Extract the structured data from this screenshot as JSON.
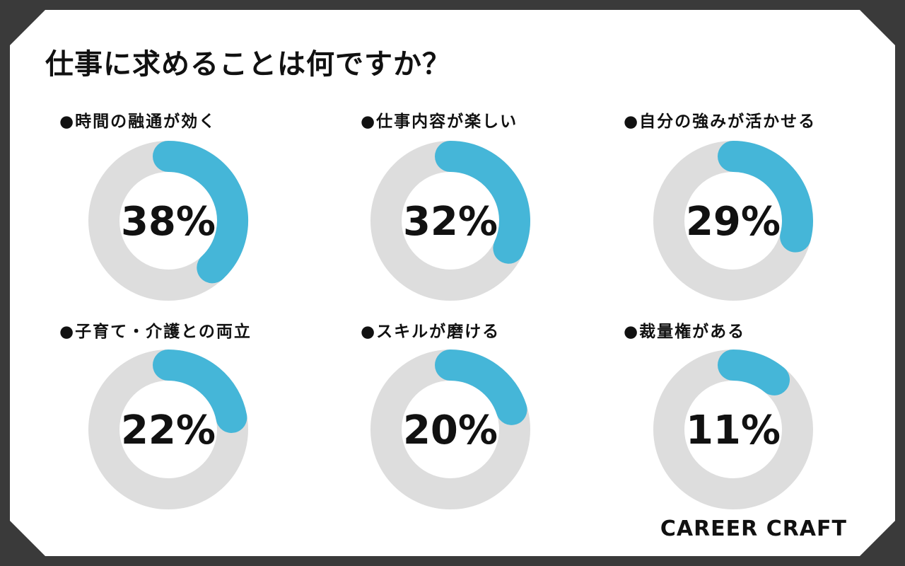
{
  "title": "仕事に求めることは何ですか？",
  "brand": "CAREER CRAFT",
  "colors": {
    "accent": "#45b6d8",
    "track": "#dddddd",
    "frame": "#3a3a3a"
  },
  "items": [
    {
      "label": "●時間の融通が効く",
      "value_label": "38%"
    },
    {
      "label": "●仕事内容が楽しい",
      "value_label": "32%"
    },
    {
      "label": "●自分の強みが活かせる",
      "value_label": "29%"
    },
    {
      "label": "●子育て・介護との両立",
      "value_label": "22%"
    },
    {
      "label": "●スキルが磨ける",
      "value_label": "20%"
    },
    {
      "label": "●裁量権がある",
      "value_label": "11%"
    }
  ],
  "chart_data": {
    "type": "pie",
    "title": "仕事に求めることは何ですか？",
    "categories": [
      "時間の融通が効く",
      "仕事内容が楽しい",
      "自分の強みが活かせる",
      "子育て・介護との両立",
      "スキルが磨ける",
      "裁量権がある"
    ],
    "values": [
      38,
      32,
      29,
      22,
      20,
      11
    ],
    "unit": "%",
    "ylim": [
      0,
      100
    ]
  }
}
